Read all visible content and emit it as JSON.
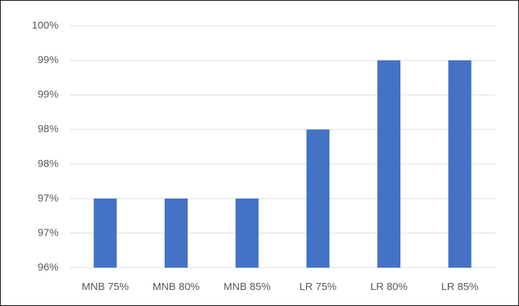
{
  "chart_data": {
    "type": "bar",
    "categories": [
      "MNB 75%",
      "MNB 80%",
      "MNB 85%",
      "LR 75%",
      "LR 80%",
      "LR 85%"
    ],
    "values": [
      97,
      97,
      97,
      98,
      99,
      99
    ],
    "color": "#4472c4",
    "ylim": [
      96,
      99.5
    ],
    "yticks": [
      {
        "value": 96,
        "label": "96%"
      },
      {
        "value": 96.5,
        "label": "97%"
      },
      {
        "value": 97,
        "label": "97%"
      },
      {
        "value": 97.5,
        "label": "98%"
      },
      {
        "value": 98,
        "label": "98%"
      },
      {
        "value": 98.5,
        "label": "99%"
      },
      {
        "value": 99,
        "label": "99%"
      },
      {
        "value": 99.5,
        "label": "100%"
      }
    ],
    "grid": true
  }
}
